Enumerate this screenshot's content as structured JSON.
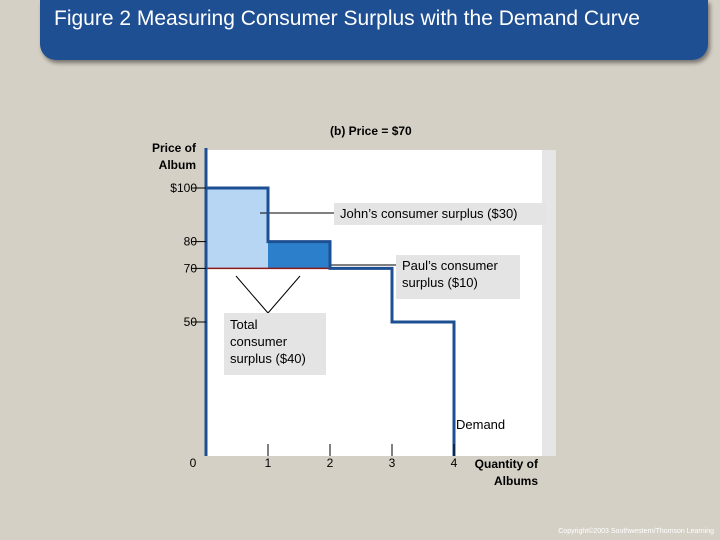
{
  "title": "Figure 2 Measuring Consumer Surplus with the Demand Curve",
  "panel_title": "(b) Price = $70",
  "chart_data": {
    "type": "step",
    "title": "(b) Price = $70",
    "ylabel": "Price of Album",
    "xlabel": "Quantity of Albums",
    "x_ticks": [
      "0",
      "1",
      "2",
      "3",
      "4"
    ],
    "y_ticks": [
      "$100",
      "80",
      "70",
      "50"
    ],
    "price_line": 70,
    "series": [
      {
        "name": "Demand",
        "steps": [
          [
            0,
            100
          ],
          [
            1,
            100
          ],
          [
            1,
            80
          ],
          [
            2,
            80
          ],
          [
            2,
            70
          ],
          [
            3,
            70
          ],
          [
            3,
            50
          ],
          [
            4,
            50
          ],
          [
            4,
            0
          ]
        ]
      }
    ],
    "areas": [
      {
        "label": "John’s consumer surplus ($30)",
        "x": [
          0,
          1
        ],
        "y": [
          70,
          100
        ],
        "color": "#b6d6f4"
      },
      {
        "label": "Paul’s consumer surplus ($10)",
        "x": [
          1,
          2
        ],
        "y": [
          70,
          80
        ],
        "color": "#2b7fcb"
      }
    ],
    "annotations": [
      "John’s consumer surplus ($30)",
      "Paul’s consumer surplus ($10)",
      "Total consumer surplus ($40)",
      "Demand"
    ]
  },
  "labels": {
    "y_axis_line1": "Price of",
    "y_axis_line2": "Album",
    "x_axis_line1": "Quantity of",
    "x_axis_line2": "Albums",
    "john": "John’s consumer surplus ($30)",
    "paul_line1": "Paul’s consumer",
    "paul_line2": "surplus ($10)",
    "total_line1": "Total",
    "total_line2": "consumer",
    "total_line3": "surplus ($40)",
    "demand": "Demand"
  },
  "colors": {
    "title_bar": "#1f4f93",
    "demand_line": "#1f4f93",
    "john_area": "#b6d6f4",
    "paul_area": "#2b7fcb",
    "price_line": "#8b1a1a"
  },
  "copyright": "Copyright©2003 Southwestern/Thomson Learning"
}
